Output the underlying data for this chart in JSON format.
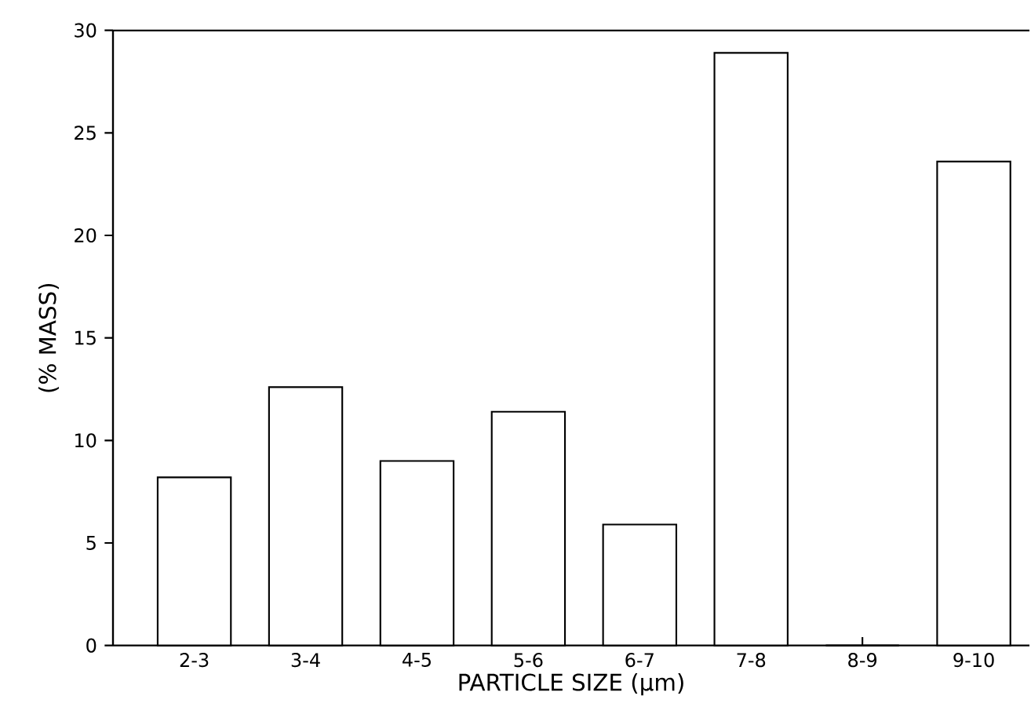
{
  "chart_data": {
    "type": "bar",
    "xlabel": "PARTICLE SIZE (µm)",
    "ylabel": "(% MASS)",
    "categories": [
      "2-3",
      "3-4",
      "4-5",
      "5-6",
      "6-7",
      "7-8",
      "8-9",
      "9-10"
    ],
    "values": [
      8.2,
      12.6,
      9.0,
      11.4,
      5.9,
      28.9,
      0,
      23.6
    ],
    "color": "#000000",
    "ylim": [
      0,
      30
    ],
    "yticks": [
      0,
      5,
      10,
      15,
      20,
      25,
      30
    ],
    "grid": false
  }
}
